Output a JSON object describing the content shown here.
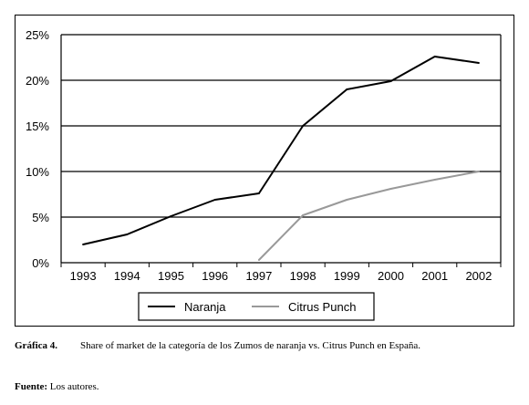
{
  "chart_data": {
    "type": "line",
    "title": "",
    "xlabel": "",
    "ylabel": "",
    "x": [
      "1993",
      "1994",
      "1995",
      "1996",
      "1997",
      "1998",
      "1999",
      "2000",
      "2001",
      "2002"
    ],
    "ylim": [
      0,
      25
    ],
    "y_ticks": [
      "0%",
      "5%",
      "10%",
      "15%",
      "20%",
      "25%"
    ],
    "grid": "horizontal",
    "legend_position": "bottom",
    "series": [
      {
        "name": "Naranja",
        "color": "#000000",
        "points": [
          [
            1993,
            2.0
          ],
          [
            1994,
            3.1
          ],
          [
            1995,
            5.1
          ],
          [
            1996,
            6.9
          ],
          [
            1997,
            7.6
          ],
          [
            1998,
            15.0
          ],
          [
            1999,
            19.0
          ],
          [
            2000,
            19.9
          ],
          [
            2001,
            22.6
          ],
          [
            2002,
            21.9
          ]
        ]
      },
      {
        "name": "Citrus Punch",
        "color": "#999999",
        "points": [
          [
            1997,
            0.3
          ],
          [
            1998,
            5.2
          ],
          [
            1999,
            6.9
          ],
          [
            2000,
            8.1
          ],
          [
            2001,
            9.1
          ],
          [
            2002,
            10.0
          ]
        ]
      }
    ]
  },
  "caption": {
    "label": "Gráfica 4.",
    "text": "Share of market de la categoría de los Zumos de naranja vs. Citrus Punch en España."
  },
  "source": {
    "label": "Fuente:",
    "text": "Los autores."
  }
}
